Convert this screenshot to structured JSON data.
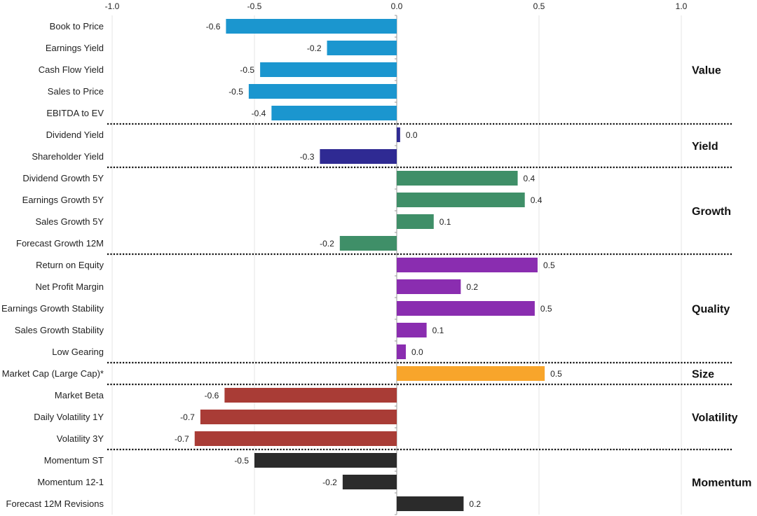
{
  "chart_data": {
    "type": "bar",
    "orientation": "horizontal",
    "title": "",
    "xlabel": "",
    "ylabel": "",
    "xlim": [
      -1.0,
      1.0
    ],
    "x_ticks": [
      "-1.0",
      "-0.5",
      "0.0",
      "0.5",
      "1.0"
    ],
    "x_tick_values": [
      -1.0,
      -0.5,
      0.0,
      0.5,
      1.0
    ],
    "grid": "vertical",
    "groups": [
      {
        "name": "Value",
        "color": "#1b96cf",
        "items": [
          {
            "label": "Book to Price",
            "value": -0.6,
            "display": "-0.6"
          },
          {
            "label": "Earnings Yield",
            "value": -0.245,
            "display": "-0.2"
          },
          {
            "label": "Cash Flow Yield",
            "value": -0.48,
            "display": "-0.5"
          },
          {
            "label": "Sales to Price",
            "value": -0.52,
            "display": "-0.5"
          },
          {
            "label": "EBITDA to EV",
            "value": -0.44,
            "display": "-0.4"
          }
        ]
      },
      {
        "name": "Yield",
        "color": "#2f2a93",
        "items": [
          {
            "label": "Dividend Yield",
            "value": 0.012,
            "display": "0.0"
          },
          {
            "label": "Shareholder Yield",
            "value": -0.27,
            "display": "-0.3"
          }
        ]
      },
      {
        "name": "Growth",
        "color": "#3f8f68",
        "items": [
          {
            "label": "Dividend Growth 5Y",
            "value": 0.425,
            "display": "0.4"
          },
          {
            "label": "Earnings Growth 5Y",
            "value": 0.45,
            "display": "0.4"
          },
          {
            "label": "Sales Growth 5Y",
            "value": 0.13,
            "display": "0.1"
          },
          {
            "label": "Forecast Growth 12M",
            "value": -0.2,
            "display": "-0.2"
          }
        ]
      },
      {
        "name": "Quality",
        "color": "#8a2db0",
        "items": [
          {
            "label": "Return on Equity",
            "value": 0.495,
            "display": "0.5"
          },
          {
            "label": "Net Profit Margin",
            "value": 0.225,
            "display": "0.2"
          },
          {
            "label": "Earnings Growth Stability",
            "value": 0.485,
            "display": "0.5"
          },
          {
            "label": "Sales Growth Stability",
            "value": 0.105,
            "display": "0.1"
          },
          {
            "label": "Low Gearing",
            "value": 0.032,
            "display": "0.0"
          }
        ]
      },
      {
        "name": "Size",
        "color": "#f8a52b",
        "items": [
          {
            "label": "Market Cap (Large Cap)*",
            "value": 0.52,
            "display": "0.5"
          }
        ]
      },
      {
        "name": "Volatility",
        "color": "#a93c36",
        "items": [
          {
            "label": "Market Beta",
            "value": -0.605,
            "display": "-0.6"
          },
          {
            "label": "Daily Volatility 1Y",
            "value": -0.69,
            "display": "-0.7"
          },
          {
            "label": "Volatility 3Y",
            "value": -0.71,
            "display": "-0.7"
          }
        ]
      },
      {
        "name": "Momentum",
        "color": "#2b2b2b",
        "items": [
          {
            "label": "Momentum ST",
            "value": -0.5,
            "display": "-0.5"
          },
          {
            "label": "Momentum 12-1",
            "value": -0.19,
            "display": "-0.2"
          },
          {
            "label": "Forecast 12M Revisions",
            "value": 0.235,
            "display": "0.2"
          }
        ]
      }
    ]
  }
}
